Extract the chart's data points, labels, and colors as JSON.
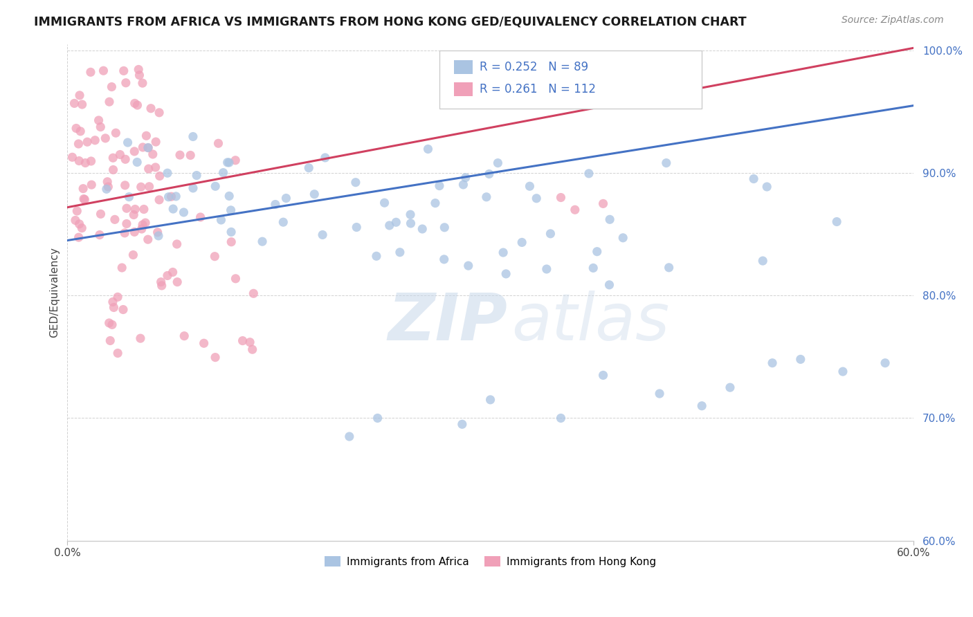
{
  "title": "IMMIGRANTS FROM AFRICA VS IMMIGRANTS FROM HONG KONG GED/EQUIVALENCY CORRELATION CHART",
  "source": "Source: ZipAtlas.com",
  "ylabel": "GED/Equivalency",
  "xmin": 0.0,
  "xmax": 0.6,
  "ymin": 0.6,
  "ymax": 1.005,
  "ytick_labels": [
    "60.0%",
    "70.0%",
    "80.0%",
    "90.0%",
    "100.0%"
  ],
  "ytick_values": [
    0.6,
    0.7,
    0.8,
    0.9,
    1.0
  ],
  "africa_color": "#aac4e2",
  "hongkong_color": "#f0a0b8",
  "africa_line_color": "#4472c4",
  "hongkong_line_color": "#d04060",
  "legend_africa_label": "Immigrants from Africa",
  "legend_hk_label": "Immigrants from Hong Kong",
  "R_africa": 0.252,
  "N_africa": 89,
  "R_hk": 0.261,
  "N_hk": 112,
  "watermark_zip": "ZIP",
  "watermark_atlas": "atlas",
  "africa_line_x0": 0.0,
  "africa_line_y0": 0.845,
  "africa_line_x1": 0.6,
  "africa_line_y1": 0.955,
  "hk_line_x0": 0.0,
  "hk_line_y0": 0.872,
  "hk_line_x1": 0.6,
  "hk_line_y1": 1.002
}
